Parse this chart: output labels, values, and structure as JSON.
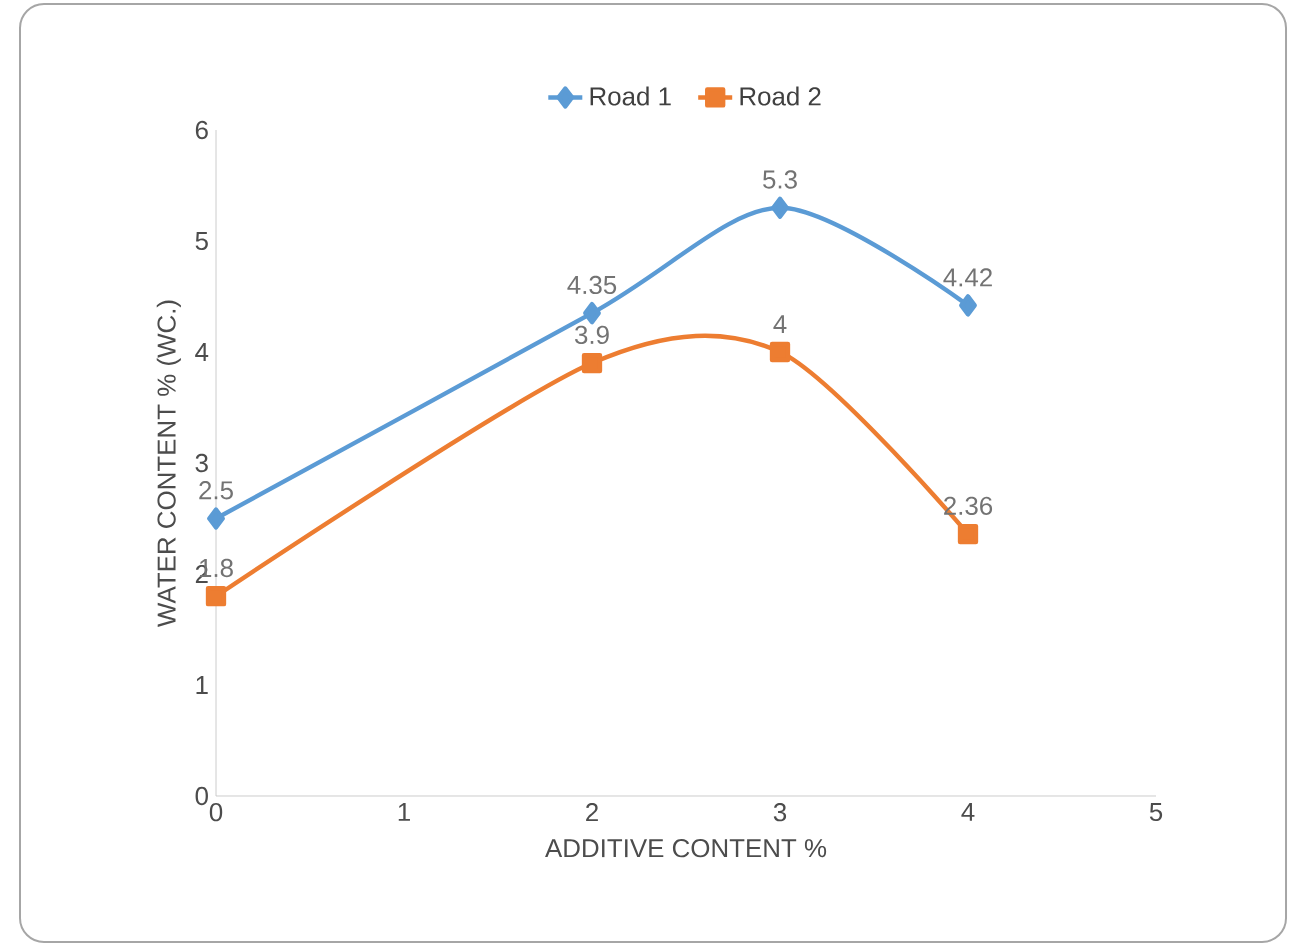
{
  "chart_data": {
    "type": "line",
    "xlabel": "ADDITIVE CONTENT %",
    "ylabel": "WATER CONTENT % (WC.)",
    "xlim": [
      0,
      5
    ],
    "xticks": [
      0,
      1,
      2,
      3,
      4,
      5
    ],
    "ylim": [
      0,
      6
    ],
    "yticks": [
      0,
      1,
      2,
      3,
      4,
      5,
      6
    ],
    "legend": "top",
    "data_labels": true,
    "line_style": "solid",
    "series": [
      {
        "name": "Road 1",
        "color": "#5b9bd5",
        "marker": "diamond",
        "x": [
          0,
          2,
          3,
          4
        ],
        "values": [
          2.5,
          4.35,
          5.3,
          4.42
        ]
      },
      {
        "name": "Road 2",
        "color": "#ed7d31",
        "marker": "square",
        "x": [
          0,
          2,
          3,
          4
        ],
        "values": [
          1.8,
          3.9,
          4,
          2.36
        ]
      }
    ]
  }
}
